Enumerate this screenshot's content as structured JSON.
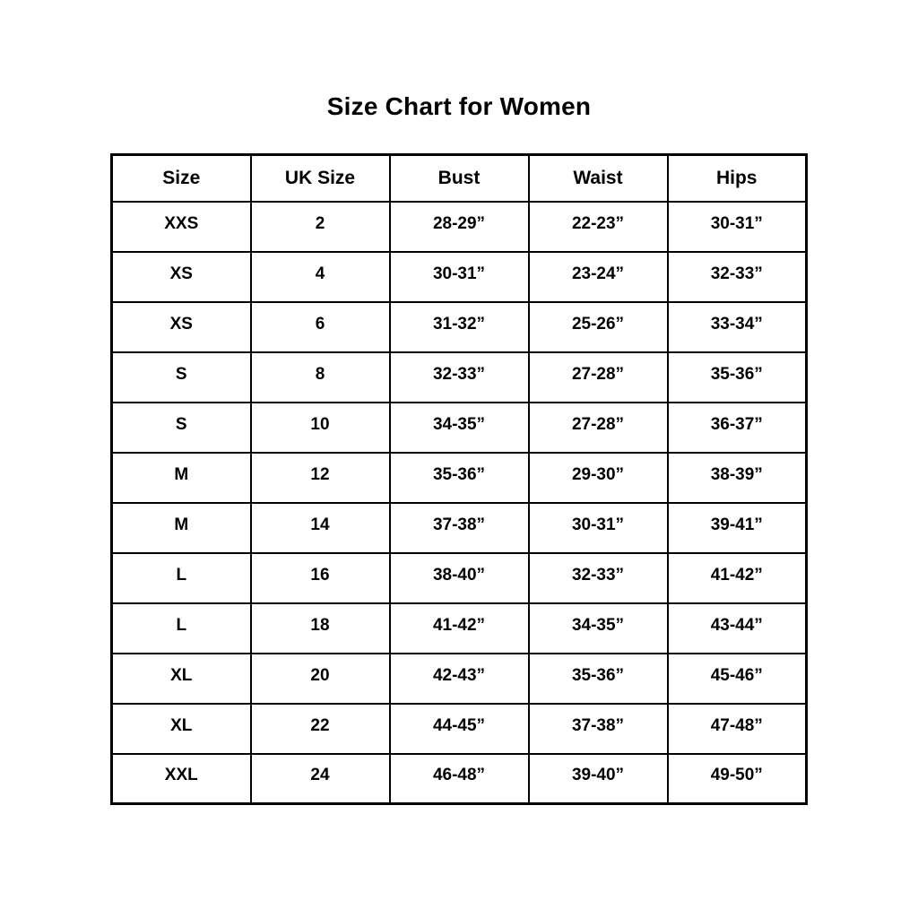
{
  "page": {
    "title": "Size Chart for Women"
  },
  "table": {
    "headers": [
      "Size",
      "UK Size",
      "Bust",
      "Waist",
      "Hips"
    ],
    "rows": [
      [
        "XXS",
        "2",
        "28-29”",
        "22-23”",
        "30-31”"
      ],
      [
        "XS",
        "4",
        "30-31”",
        "23-24”",
        "32-33”"
      ],
      [
        "XS",
        "6",
        "31-32”",
        "25-26”",
        "33-34”"
      ],
      [
        "S",
        "8",
        "32-33”",
        "27-28”",
        "35-36”"
      ],
      [
        "S",
        "10",
        "34-35”",
        "27-28”",
        "36-37”"
      ],
      [
        "M",
        "12",
        "35-36”",
        "29-30”",
        "38-39”"
      ],
      [
        "M",
        "14",
        "37-38”",
        "30-31”",
        "39-41”"
      ],
      [
        "L",
        "16",
        "38-40”",
        "32-33”",
        "41-42”"
      ],
      [
        "L",
        "18",
        "41-42”",
        "34-35”",
        "43-44”"
      ],
      [
        "XL",
        "20",
        "42-43”",
        "35-36”",
        "45-46”"
      ],
      [
        "XL",
        "22",
        "44-45”",
        "37-38”",
        "47-48”"
      ],
      [
        "XXL",
        "24",
        "46-48”",
        "39-40”",
        "49-50”"
      ]
    ]
  },
  "colors": {
    "background": "#ffffff",
    "text": "#000000",
    "border": "#000000"
  },
  "chart_data": {
    "type": "table",
    "title": "Size Chart for Women",
    "columns": [
      "Size",
      "UK Size",
      "Bust",
      "Waist",
      "Hips"
    ],
    "rows": [
      {
        "size": "XXS",
        "uk_size": 2,
        "bust": "28-29”",
        "waist": "22-23”",
        "hips": "30-31”"
      },
      {
        "size": "XS",
        "uk_size": 4,
        "bust": "30-31”",
        "waist": "23-24”",
        "hips": "32-33”"
      },
      {
        "size": "XS",
        "uk_size": 6,
        "bust": "31-32”",
        "waist": "25-26”",
        "hips": "33-34”"
      },
      {
        "size": "S",
        "uk_size": 8,
        "bust": "32-33”",
        "waist": "27-28”",
        "hips": "35-36”"
      },
      {
        "size": "S",
        "uk_size": 10,
        "bust": "34-35”",
        "waist": "27-28”",
        "hips": "36-37”"
      },
      {
        "size": "M",
        "uk_size": 12,
        "bust": "35-36”",
        "waist": "29-30”",
        "hips": "38-39”"
      },
      {
        "size": "M",
        "uk_size": 14,
        "bust": "37-38”",
        "waist": "30-31”",
        "hips": "39-41”"
      },
      {
        "size": "L",
        "uk_size": 16,
        "bust": "38-40”",
        "waist": "32-33”",
        "hips": "41-42”"
      },
      {
        "size": "L",
        "uk_size": 18,
        "bust": "41-42”",
        "waist": "34-35”",
        "hips": "43-44”"
      },
      {
        "size": "XL",
        "uk_size": 20,
        "bust": "42-43”",
        "waist": "35-36”",
        "hips": "45-46”"
      },
      {
        "size": "XL",
        "uk_size": 22,
        "bust": "44-45”",
        "waist": "37-38”",
        "hips": "47-48”"
      },
      {
        "size": "XXL",
        "uk_size": 24,
        "bust": "46-48”",
        "waist": "39-40”",
        "hips": "49-50”"
      }
    ],
    "layout": {
      "grid": true,
      "header_row": true,
      "text_align": "center"
    }
  }
}
